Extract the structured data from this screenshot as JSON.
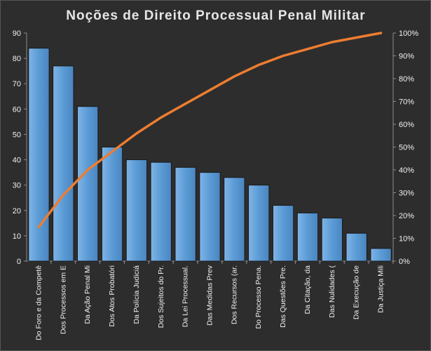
{
  "chart_data": {
    "type": "bar",
    "title": "Noções de Direito Processual Penal Militar",
    "categories": [
      "Do Foro e da Competê",
      "Dos Processos em E",
      "Da Ação Penal Mi",
      "Dos Atos Probatóri",
      "Da Polícia Judiciá",
      "Dos Sujeitos do Pr.",
      "Da Lei Processual.",
      "Das Medidas Prev",
      "Dos Recursos (ar.",
      "Do Processo Pena.",
      "Das Questões Pre.",
      "Da Citação, da",
      "Das Nulidades (",
      "Da Execução de",
      "Da Justiça Mili"
    ],
    "series": [
      {
        "values": [
          84,
          77,
          61,
          45,
          40,
          39,
          37,
          35,
          33,
          30,
          22,
          19,
          17,
          11,
          5
        ]
      },
      {
        "values": [
          15,
          29,
          40,
          48,
          56,
          63,
          69,
          75,
          81,
          86,
          90,
          93,
          96,
          98,
          100
        ]
      }
    ],
    "y_left": {
      "ylim": [
        0,
        90
      ],
      "ticks": [
        "0",
        "10",
        "20",
        "30",
        "40",
        "50",
        "60",
        "70",
        "80",
        "90"
      ]
    },
    "y_right": {
      "ylim": [
        0,
        100
      ],
      "ticks": [
        "0%",
        "10%",
        "20%",
        "30%",
        "40%",
        "50%",
        "60%",
        "70%",
        "80%",
        "90%",
        "100%"
      ]
    },
    "grid": false,
    "legend": "none",
    "colors": {
      "background": "#2d2d2d",
      "bar_fill": "#5b9bd5",
      "bar_fill_light": "#7fb4e6",
      "bar_edge": "#1a1a1a",
      "line": "#ed7d31",
      "text": "#f0f0f0",
      "axis": "#8c8c8c"
    }
  }
}
